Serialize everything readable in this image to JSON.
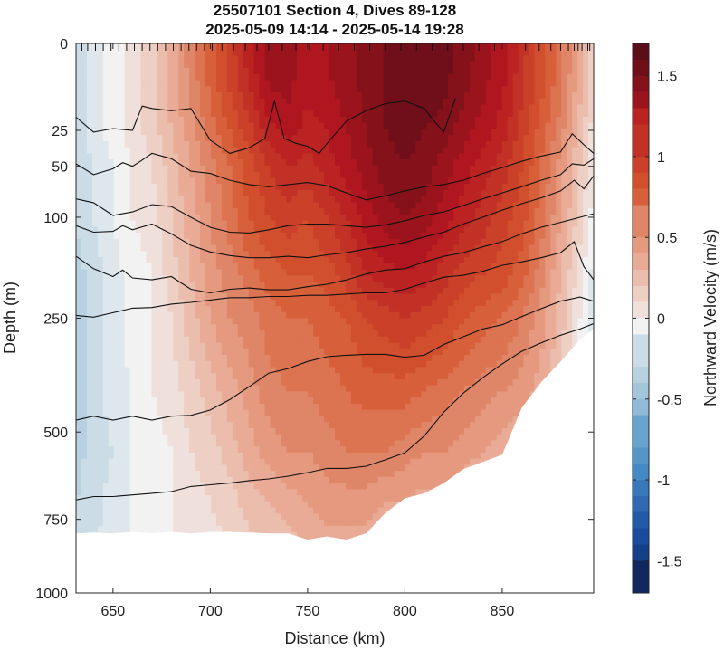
{
  "chart_data": {
    "type": "heatmap",
    "title": "25507101 Section 4, Dives 89-128",
    "subtitle": "2025-05-09 14:14 - 2025-05-14 19:28",
    "xlabel": "Distance (km)",
    "ylabel": "Depth (m)",
    "colorbar_label": "Northward Velocity (m/s)",
    "xlim": [
      631,
      897
    ],
    "ylim": [
      0,
      1000
    ],
    "y_scale": "square-root",
    "x_ticks": [
      "650",
      "700",
      "750",
      "800",
      "850"
    ],
    "x_tick_values": [
      650,
      700,
      750,
      800,
      850
    ],
    "y_ticks": [
      "0",
      "25",
      "50",
      "100",
      "250",
      "500",
      "750",
      "1000"
    ],
    "y_tick_values": [
      0,
      25,
      50,
      100,
      250,
      500,
      750,
      1000
    ],
    "clim": [
      -1.7,
      1.7
    ],
    "colorbar_ticks": [
      "1.5",
      "1",
      "0.5",
      "0",
      "-0.5",
      "-1",
      "-1.5"
    ],
    "colorbar_tick_values": [
      1.5,
      1,
      0.5,
      0,
      -0.5,
      -1,
      -1.5
    ],
    "colormap": [
      "#0d1b4a",
      "#1a4ea3",
      "#4a90c8",
      "#9fc3da",
      "#f2f2f2",
      "#e8a790",
      "#d5562f",
      "#b5171f",
      "#5b0d18"
    ],
    "dive_surface_positions_km": [
      634,
      637,
      641,
      645,
      649,
      653,
      657,
      661,
      665,
      669,
      673,
      677,
      681,
      685,
      689,
      693,
      697,
      701,
      706,
      712,
      718,
      724,
      730,
      737,
      744,
      751,
      758,
      766,
      774,
      782,
      790,
      798,
      806,
      814,
      822,
      830,
      838,
      846,
      854,
      862,
      869,
      875,
      880,
      884,
      887,
      889,
      891,
      893,
      894,
      895
    ],
    "bottom_depth_m": [
      [
        631,
        795
      ],
      [
        640,
        792
      ],
      [
        650,
        795
      ],
      [
        660,
        790
      ],
      [
        670,
        795
      ],
      [
        680,
        790
      ],
      [
        690,
        795
      ],
      [
        700,
        790
      ],
      [
        710,
        790
      ],
      [
        720,
        792
      ],
      [
        730,
        795
      ],
      [
        740,
        795
      ],
      [
        750,
        815
      ],
      [
        760,
        805
      ],
      [
        770,
        815
      ],
      [
        780,
        795
      ],
      [
        790,
        730
      ],
      [
        800,
        685
      ],
      [
        810,
        670
      ],
      [
        820,
        640
      ],
      [
        830,
        600
      ],
      [
        840,
        580
      ],
      [
        850,
        560
      ],
      [
        860,
        440
      ],
      [
        870,
        380
      ],
      [
        880,
        335
      ],
      [
        890,
        290
      ],
      [
        897,
        270
      ]
    ],
    "velocity_grid": {
      "x": [
        631,
        640,
        650,
        660,
        670,
        680,
        690,
        700,
        710,
        720,
        730,
        740,
        750,
        760,
        770,
        780,
        790,
        800,
        810,
        820,
        830,
        840,
        850,
        860,
        870,
        880,
        890,
        897
      ],
      "depth": [
        0,
        25,
        50,
        100,
        175,
        250,
        400,
        550,
        700,
        850
      ],
      "values": [
        [
          -0.2,
          -0.1,
          0.0,
          0.1,
          0.2,
          0.4,
          0.6,
          0.8,
          1.0,
          1.2,
          1.4,
          1.4,
          1.3,
          1.35,
          1.4,
          1.5,
          1.55,
          1.6,
          1.6,
          1.6,
          1.5,
          1.4,
          1.3,
          1.1,
          0.9,
          0.7,
          0.4,
          0.2
        ],
        [
          -0.2,
          -0.1,
          0.0,
          0.1,
          0.2,
          0.35,
          0.5,
          0.7,
          0.85,
          1.0,
          1.2,
          1.3,
          1.2,
          1.25,
          1.35,
          1.45,
          1.55,
          1.6,
          1.55,
          1.5,
          1.4,
          1.3,
          1.2,
          1.0,
          0.8,
          0.6,
          0.3,
          0.1
        ],
        [
          -0.25,
          -0.15,
          -0.05,
          0.05,
          0.15,
          0.3,
          0.45,
          0.6,
          0.75,
          0.9,
          1.05,
          1.15,
          1.1,
          1.2,
          1.3,
          1.4,
          1.5,
          1.55,
          1.5,
          1.4,
          1.3,
          1.2,
          1.1,
          0.95,
          0.75,
          0.5,
          0.25,
          0.05
        ],
        [
          -0.25,
          -0.15,
          -0.05,
          0.05,
          0.1,
          0.25,
          0.4,
          0.55,
          0.7,
          0.85,
          0.95,
          1.0,
          0.95,
          1.05,
          1.15,
          1.3,
          1.4,
          1.45,
          1.4,
          1.3,
          1.2,
          1.1,
          1.0,
          0.9,
          0.7,
          0.45,
          0.2,
          0.0
        ],
        [
          -0.3,
          -0.2,
          -0.1,
          0.0,
          0.05,
          0.2,
          0.35,
          0.5,
          0.6,
          0.7,
          0.8,
          0.85,
          0.85,
          0.9,
          1.0,
          1.15,
          1.2,
          1.25,
          1.2,
          1.1,
          1.0,
          0.95,
          0.9,
          0.8,
          0.6,
          0.35,
          0.1,
          -0.1
        ],
        [
          -0.3,
          -0.2,
          -0.1,
          0.0,
          0.05,
          0.15,
          0.3,
          0.45,
          0.55,
          0.6,
          0.7,
          0.75,
          0.75,
          0.8,
          0.85,
          0.95,
          1.0,
          1.05,
          1.0,
          0.95,
          0.85,
          0.8,
          0.75,
          0.65,
          0.5,
          0.3,
          0.05,
          -0.1
        ],
        [
          -0.3,
          -0.2,
          -0.1,
          -0.05,
          0.05,
          0.1,
          0.2,
          0.3,
          0.4,
          0.5,
          0.6,
          0.65,
          0.65,
          0.7,
          0.75,
          0.8,
          0.8,
          0.8,
          0.75,
          0.7,
          0.65,
          0.6,
          0.55,
          0.5,
          0.4,
          0.25,
          0.05,
          -0.1
        ],
        [
          -0.3,
          -0.2,
          -0.15,
          -0.05,
          0.0,
          0.05,
          0.15,
          0.2,
          0.3,
          0.4,
          0.5,
          0.55,
          0.55,
          0.6,
          0.65,
          0.65,
          0.65,
          0.6,
          0.55,
          0.55,
          0.5,
          0.45,
          0.4,
          0.35,
          0.3,
          0.2,
          0.05,
          -0.1
        ],
        [
          -0.25,
          -0.2,
          -0.1,
          -0.05,
          0.0,
          0.05,
          0.1,
          0.15,
          0.2,
          0.3,
          0.35,
          0.4,
          0.45,
          0.5,
          0.5,
          0.5,
          0.45,
          0.45,
          0.4,
          0.4,
          0.35,
          0.3,
          0.3,
          0.25,
          0.2,
          0.1,
          0.0,
          -0.1
        ],
        [
          -0.2,
          -0.15,
          -0.1,
          -0.05,
          0.0,
          0.05,
          0.1,
          0.1,
          0.15,
          0.2,
          0.25,
          0.3,
          0.35,
          0.4,
          0.4,
          0.4,
          0.35,
          0.35,
          0.3,
          0.3,
          0.25,
          0.2,
          0.2,
          0.15,
          0.1,
          0.05,
          0.0,
          -0.1
        ]
      ]
    },
    "contours": [
      [
        [
          631,
          18
        ],
        [
          640,
          26
        ],
        [
          650,
          24
        ],
        [
          660,
          25
        ],
        [
          665,
          13
        ],
        [
          670,
          14
        ],
        [
          680,
          15
        ],
        [
          690,
          14
        ],
        [
          700,
          31
        ],
        [
          710,
          40
        ],
        [
          720,
          36
        ],
        [
          728,
          30
        ],
        [
          733,
          11
        ],
        [
          738,
          30
        ],
        [
          744,
          33
        ],
        [
          750,
          35
        ],
        [
          756,
          40
        ],
        [
          760,
          33
        ],
        [
          770,
          20
        ],
        [
          780,
          15
        ],
        [
          790,
          12
        ],
        [
          800,
          11
        ],
        [
          810,
          14
        ],
        [
          815,
          20
        ],
        [
          820,
          26
        ],
        [
          826,
          10
        ]
      ],
      [
        [
          631,
          48
        ],
        [
          640,
          57
        ],
        [
          650,
          52
        ],
        [
          655,
          47
        ],
        [
          660,
          50
        ],
        [
          665,
          45
        ],
        [
          670,
          40
        ],
        [
          680,
          44
        ],
        [
          690,
          54
        ],
        [
          700,
          56
        ],
        [
          710,
          62
        ],
        [
          720,
          66
        ],
        [
          730,
          68
        ],
        [
          740,
          66
        ],
        [
          750,
          64
        ],
        [
          760,
          67
        ],
        [
          770,
          74
        ],
        [
          780,
          81
        ],
        [
          790,
          77
        ],
        [
          800,
          72
        ],
        [
          810,
          68
        ],
        [
          820,
          66
        ],
        [
          830,
          62
        ],
        [
          840,
          56
        ],
        [
          850,
          51
        ],
        [
          860,
          46
        ],
        [
          870,
          42
        ],
        [
          880,
          39
        ],
        [
          886,
          27
        ],
        [
          892,
          34
        ],
        [
          897,
          40
        ]
      ],
      [
        [
          631,
          80
        ],
        [
          640,
          84
        ],
        [
          650,
          98
        ],
        [
          660,
          94
        ],
        [
          670,
          86
        ],
        [
          680,
          88
        ],
        [
          690,
          100
        ],
        [
          700,
          112
        ],
        [
          710,
          118
        ],
        [
          720,
          119
        ],
        [
          730,
          115
        ],
        [
          740,
          110
        ],
        [
          750,
          108
        ],
        [
          760,
          108
        ],
        [
          770,
          110
        ],
        [
          780,
          112
        ],
        [
          790,
          109
        ],
        [
          800,
          104
        ],
        [
          810,
          98
        ],
        [
          820,
          94
        ],
        [
          830,
          87
        ],
        [
          840,
          80
        ],
        [
          850,
          74
        ],
        [
          860,
          68
        ],
        [
          870,
          62
        ],
        [
          880,
          57
        ],
        [
          886,
          48
        ],
        [
          892,
          49
        ],
        [
          897,
          44
        ]
      ],
      [
        [
          631,
          110
        ],
        [
          640,
          118
        ],
        [
          650,
          117
        ],
        [
          655,
          110
        ],
        [
          660,
          115
        ],
        [
          670,
          108
        ],
        [
          680,
          120
        ],
        [
          690,
          135
        ],
        [
          700,
          144
        ],
        [
          710,
          149
        ],
        [
          720,
          152
        ],
        [
          730,
          152
        ],
        [
          740,
          150
        ],
        [
          750,
          152
        ],
        [
          760,
          148
        ],
        [
          770,
          145
        ],
        [
          780,
          140
        ],
        [
          790,
          136
        ],
        [
          800,
          131
        ],
        [
          810,
          124
        ],
        [
          820,
          118
        ],
        [
          830,
          108
        ],
        [
          840,
          100
        ],
        [
          850,
          92
        ],
        [
          860,
          85
        ],
        [
          870,
          79
        ],
        [
          880,
          72
        ],
        [
          887,
          62
        ],
        [
          892,
          70
        ],
        [
          897,
          58
        ]
      ],
      [
        [
          631,
          150
        ],
        [
          640,
          168
        ],
        [
          650,
          180
        ],
        [
          655,
          170
        ],
        [
          660,
          182
        ],
        [
          670,
          185
        ],
        [
          680,
          180
        ],
        [
          690,
          200
        ],
        [
          700,
          206
        ],
        [
          710,
          200
        ],
        [
          720,
          198
        ],
        [
          730,
          201
        ],
        [
          740,
          201
        ],
        [
          750,
          196
        ],
        [
          760,
          192
        ],
        [
          770,
          185
        ],
        [
          780,
          176
        ],
        [
          790,
          170
        ],
        [
          800,
          168
        ],
        [
          810,
          158
        ],
        [
          820,
          150
        ],
        [
          830,
          145
        ],
        [
          840,
          137
        ],
        [
          850,
          130
        ],
        [
          860,
          120
        ],
        [
          870,
          112
        ],
        [
          880,
          106
        ],
        [
          890,
          100
        ],
        [
          897,
          96
        ]
      ],
      [
        [
          631,
          245
        ],
        [
          640,
          248
        ],
        [
          650,
          240
        ],
        [
          660,
          232
        ],
        [
          670,
          231
        ],
        [
          680,
          225
        ],
        [
          690,
          222
        ],
        [
          700,
          218
        ],
        [
          710,
          214
        ],
        [
          720,
          214
        ],
        [
          730,
          212
        ],
        [
          740,
          212
        ],
        [
          750,
          210
        ],
        [
          760,
          210
        ],
        [
          770,
          208
        ],
        [
          780,
          206
        ],
        [
          790,
          206
        ],
        [
          800,
          200
        ],
        [
          810,
          190
        ],
        [
          820,
          181
        ],
        [
          830,
          178
        ],
        [
          840,
          172
        ],
        [
          850,
          163
        ],
        [
          860,
          158
        ],
        [
          870,
          152
        ],
        [
          880,
          145
        ],
        [
          887,
          130
        ],
        [
          892,
          165
        ],
        [
          897,
          185
        ]
      ],
      [
        [
          631,
          470
        ],
        [
          640,
          460
        ],
        [
          650,
          470
        ],
        [
          660,
          460
        ],
        [
          670,
          470
        ],
        [
          680,
          460
        ],
        [
          690,
          458
        ],
        [
          700,
          445
        ],
        [
          710,
          420
        ],
        [
          720,
          390
        ],
        [
          730,
          360
        ],
        [
          740,
          350
        ],
        [
          750,
          335
        ],
        [
          760,
          325
        ],
        [
          770,
          322
        ],
        [
          780,
          320
        ],
        [
          790,
          320
        ],
        [
          800,
          326
        ],
        [
          810,
          322
        ],
        [
          820,
          300
        ],
        [
          830,
          285
        ],
        [
          840,
          270
        ],
        [
          850,
          262
        ],
        [
          860,
          247
        ],
        [
          870,
          233
        ],
        [
          880,
          220
        ],
        [
          890,
          213
        ],
        [
          897,
          220
        ]
      ],
      [
        [
          631,
          690
        ],
        [
          640,
          680
        ],
        [
          650,
          680
        ],
        [
          660,
          675
        ],
        [
          670,
          670
        ],
        [
          680,
          665
        ],
        [
          690,
          650
        ],
        [
          700,
          645
        ],
        [
          710,
          640
        ],
        [
          720,
          633
        ],
        [
          730,
          628
        ],
        [
          740,
          620
        ],
        [
          750,
          610
        ],
        [
          760,
          598
        ],
        [
          770,
          598
        ],
        [
          780,
          592
        ],
        [
          790,
          574
        ],
        [
          800,
          555
        ],
        [
          810,
          510
        ],
        [
          820,
          450
        ],
        [
          830,
          405
        ],
        [
          840,
          370
        ],
        [
          850,
          340
        ],
        [
          860,
          314
        ],
        [
          870,
          297
        ],
        [
          880,
          282
        ],
        [
          890,
          270
        ],
        [
          897,
          260
        ]
      ]
    ]
  }
}
